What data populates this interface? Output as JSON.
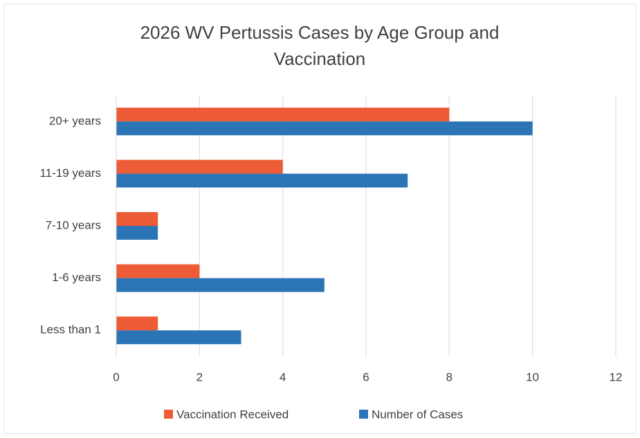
{
  "chart_data": {
    "type": "bar",
    "orientation": "horizontal",
    "title": "2026 WV Pertussis Cases by Age Group and Vaccination",
    "categories": [
      "Less than 1",
      "1-6 years",
      "7-10 years",
      "11-19 years",
      "20+ years"
    ],
    "series": [
      {
        "name": "Vaccination Received",
        "color": "#ee5b37",
        "values": [
          1,
          2,
          1,
          4,
          8
        ]
      },
      {
        "name": "Number of Cases",
        "color": "#2b74b5",
        "values": [
          3,
          5,
          1,
          7,
          10
        ]
      }
    ],
    "xlim": [
      0,
      12
    ],
    "xticks": [
      0,
      2,
      4,
      6,
      8,
      10,
      12
    ],
    "grid": true,
    "legend": "bottom"
  }
}
